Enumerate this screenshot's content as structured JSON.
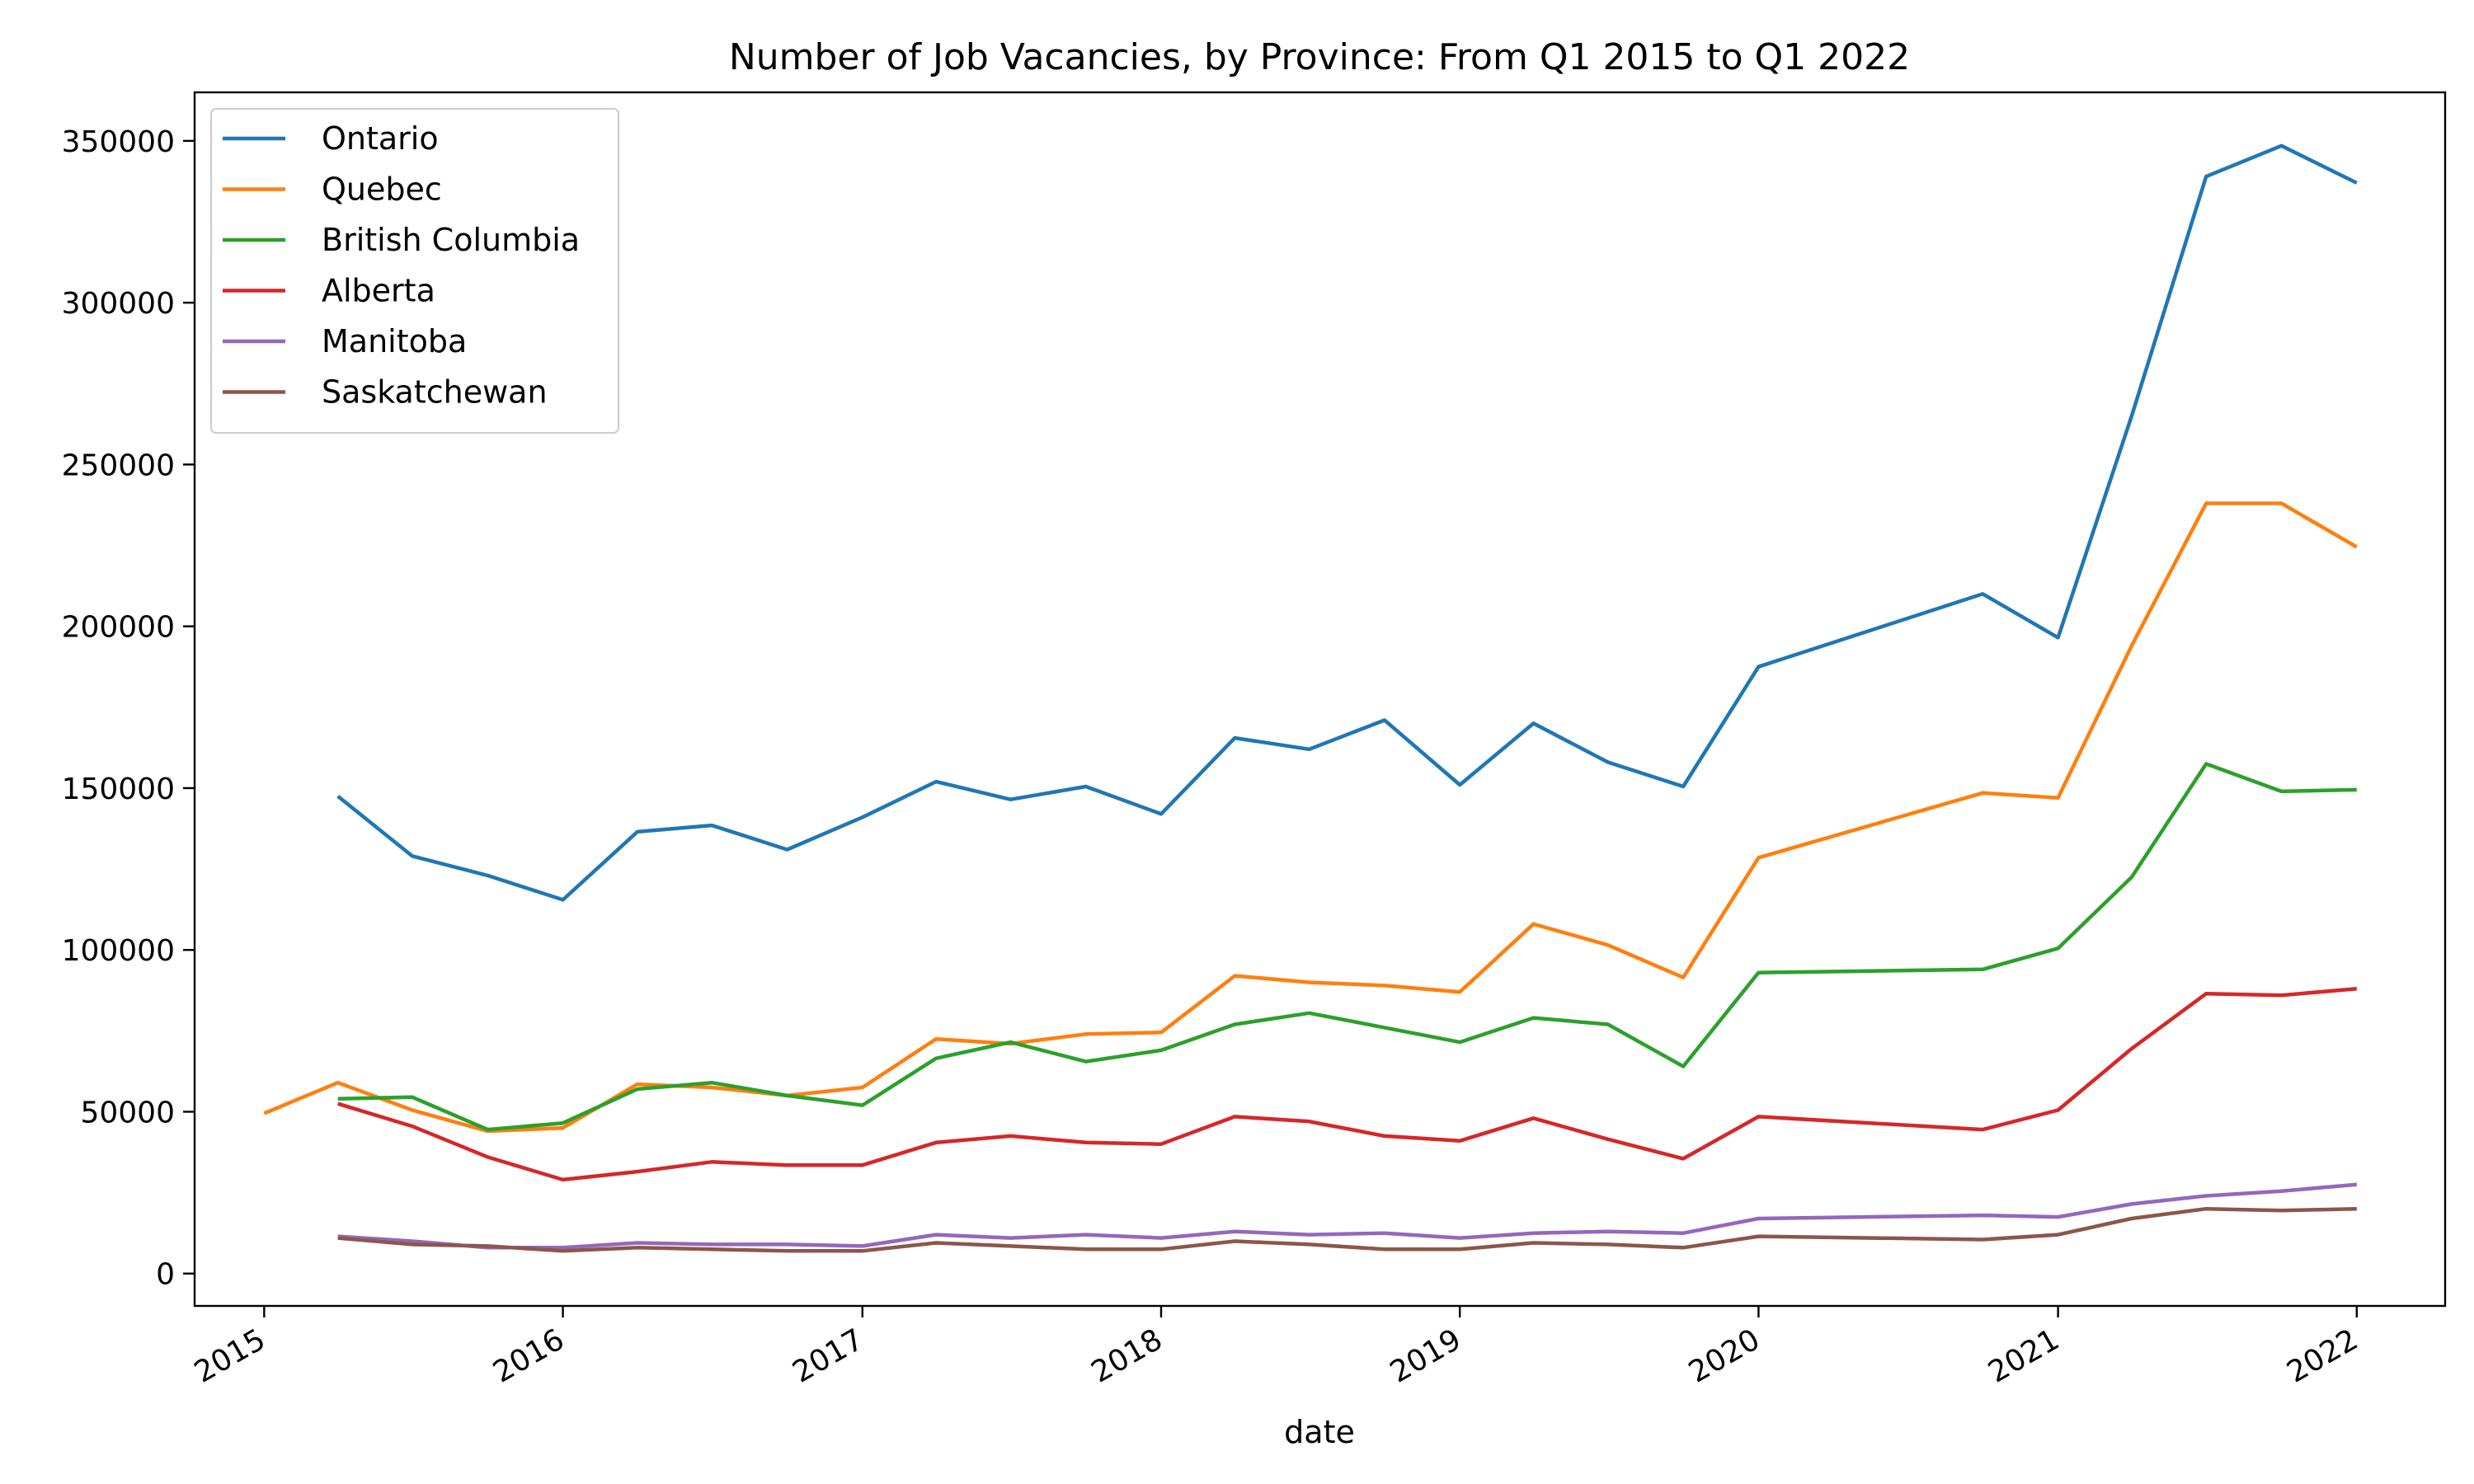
{
  "chart_data": {
    "type": "line",
    "title": "Number of Job Vacancies, by Province: From Q1 2015 to Q1 2022",
    "xlabel": "date",
    "ylabel": "",
    "x_ticks": [
      "2015",
      "2016",
      "2017",
      "2018",
      "2019",
      "2020",
      "2021",
      "2022"
    ],
    "y_ticks": [
      "0",
      "50000",
      "100000",
      "150000",
      "200000",
      "250000",
      "300000",
      "350000"
    ],
    "ylim": [
      -10000,
      365000
    ],
    "xlim": [
      "2014-10-08",
      "2022-04-19"
    ],
    "grid": false,
    "legend_position": "top-left",
    "series": [
      {
        "name": "Ontario",
        "color": "#1f77b4",
        "points": [
          [
            "2015-04-01",
            147500
          ],
          [
            "2015-07-01",
            129000
          ],
          [
            "2015-10-01",
            123000
          ],
          [
            "2016-01-01",
            115500
          ],
          [
            "2016-04-01",
            136500
          ],
          [
            "2016-07-01",
            138500
          ],
          [
            "2016-10-01",
            131000
          ],
          [
            "2017-01-01",
            141000
          ],
          [
            "2017-04-01",
            152000
          ],
          [
            "2017-07-01",
            146500
          ],
          [
            "2017-10-01",
            150500
          ],
          [
            "2018-01-01",
            142000
          ],
          [
            "2018-04-01",
            165500
          ],
          [
            "2018-07-01",
            162000
          ],
          [
            "2018-10-01",
            171000
          ],
          [
            "2019-01-01",
            151000
          ],
          [
            "2019-04-01",
            170000
          ],
          [
            "2019-07-01",
            158000
          ],
          [
            "2019-10-01",
            150500
          ],
          [
            "2020-01-01",
            187500
          ],
          [
            "2020-10-01",
            210000
          ],
          [
            "2021-01-01",
            196500
          ],
          [
            "2021-04-01",
            265000
          ],
          [
            "2021-07-01",
            339000
          ],
          [
            "2021-10-01",
            348500
          ],
          [
            "2022-01-01",
            337000
          ]
        ]
      },
      {
        "name": "Quebec",
        "color": "#ff7f0e",
        "points": [
          [
            "2015-01-01",
            49500
          ],
          [
            "2015-04-01",
            59000
          ],
          [
            "2015-07-01",
            50500
          ],
          [
            "2015-10-01",
            44000
          ],
          [
            "2016-01-01",
            45000
          ],
          [
            "2016-04-01",
            58500
          ],
          [
            "2016-07-01",
            57500
          ],
          [
            "2016-10-01",
            55000
          ],
          [
            "2017-01-01",
            57500
          ],
          [
            "2017-04-01",
            72500
          ],
          [
            "2017-07-01",
            71000
          ],
          [
            "2017-10-01",
            74000
          ],
          [
            "2018-01-01",
            74500
          ],
          [
            "2018-04-01",
            92000
          ],
          [
            "2018-07-01",
            90000
          ],
          [
            "2018-10-01",
            89000
          ],
          [
            "2019-01-01",
            87000
          ],
          [
            "2019-04-01",
            108000
          ],
          [
            "2019-07-01",
            101500
          ],
          [
            "2019-10-01",
            91500
          ],
          [
            "2020-01-01",
            128500
          ],
          [
            "2020-10-01",
            148500
          ],
          [
            "2021-01-01",
            147000
          ],
          [
            "2021-04-01",
            194000
          ],
          [
            "2021-07-01",
            238000
          ],
          [
            "2021-10-01",
            238000
          ],
          [
            "2022-01-01",
            224500
          ]
        ]
      },
      {
        "name": "British Columbia",
        "color": "#2ca02c",
        "points": [
          [
            "2015-04-01",
            54000
          ],
          [
            "2015-07-01",
            54500
          ],
          [
            "2015-10-01",
            44500
          ],
          [
            "2016-01-01",
            46500
          ],
          [
            "2016-04-01",
            57000
          ],
          [
            "2016-07-01",
            59000
          ],
          [
            "2016-10-01",
            55000
          ],
          [
            "2017-01-01",
            52000
          ],
          [
            "2017-04-01",
            66500
          ],
          [
            "2017-07-01",
            71500
          ],
          [
            "2017-10-01",
            65500
          ],
          [
            "2018-01-01",
            69000
          ],
          [
            "2018-04-01",
            77000
          ],
          [
            "2018-07-01",
            80500
          ],
          [
            "2018-10-01",
            76000
          ],
          [
            "2019-01-01",
            71500
          ],
          [
            "2019-04-01",
            79000
          ],
          [
            "2019-07-01",
            77000
          ],
          [
            "2019-10-01",
            64000
          ],
          [
            "2020-01-01",
            93000
          ],
          [
            "2020-10-01",
            94000
          ],
          [
            "2021-01-01",
            100500
          ],
          [
            "2021-04-01",
            122500
          ],
          [
            "2021-07-01",
            157500
          ],
          [
            "2021-10-01",
            149000
          ],
          [
            "2022-01-01",
            149500
          ]
        ]
      },
      {
        "name": "Alberta",
        "color": "#d62728",
        "points": [
          [
            "2015-04-01",
            52500
          ],
          [
            "2015-07-01",
            45500
          ],
          [
            "2015-10-01",
            36000
          ],
          [
            "2016-01-01",
            29000
          ],
          [
            "2016-04-01",
            31500
          ],
          [
            "2016-07-01",
            34500
          ],
          [
            "2016-10-01",
            33500
          ],
          [
            "2017-01-01",
            33500
          ],
          [
            "2017-04-01",
            40500
          ],
          [
            "2017-07-01",
            42500
          ],
          [
            "2017-10-01",
            40500
          ],
          [
            "2018-01-01",
            40000
          ],
          [
            "2018-04-01",
            48500
          ],
          [
            "2018-07-01",
            47000
          ],
          [
            "2018-10-01",
            42500
          ],
          [
            "2019-01-01",
            41000
          ],
          [
            "2019-04-01",
            48000
          ],
          [
            "2019-07-01",
            41500
          ],
          [
            "2019-10-01",
            35500
          ],
          [
            "2020-01-01",
            48500
          ],
          [
            "2020-10-01",
            44500
          ],
          [
            "2021-01-01",
            50500
          ],
          [
            "2021-04-01",
            69500
          ],
          [
            "2021-07-01",
            86500
          ],
          [
            "2021-10-01",
            86000
          ],
          [
            "2022-01-01",
            88000
          ]
        ]
      },
      {
        "name": "Manitoba",
        "color": "#9467bd",
        "points": [
          [
            "2015-04-01",
            11500
          ],
          [
            "2015-07-01",
            10000
          ],
          [
            "2015-10-01",
            8000
          ],
          [
            "2016-01-01",
            8000
          ],
          [
            "2016-04-01",
            9500
          ],
          [
            "2016-07-01",
            9000
          ],
          [
            "2016-10-01",
            9000
          ],
          [
            "2017-01-01",
            8500
          ],
          [
            "2017-04-01",
            12000
          ],
          [
            "2017-07-01",
            11000
          ],
          [
            "2017-10-01",
            12000
          ],
          [
            "2018-01-01",
            11000
          ],
          [
            "2018-04-01",
            13000
          ],
          [
            "2018-07-01",
            12000
          ],
          [
            "2018-10-01",
            12500
          ],
          [
            "2019-01-01",
            11000
          ],
          [
            "2019-04-01",
            12500
          ],
          [
            "2019-07-01",
            13000
          ],
          [
            "2019-10-01",
            12500
          ],
          [
            "2020-01-01",
            17000
          ],
          [
            "2020-10-01",
            18000
          ],
          [
            "2021-01-01",
            17500
          ],
          [
            "2021-04-01",
            21500
          ],
          [
            "2021-07-01",
            24000
          ],
          [
            "2021-10-01",
            25500
          ],
          [
            "2022-01-01",
            27500
          ]
        ]
      },
      {
        "name": "Saskatchewan",
        "color": "#8c564b",
        "points": [
          [
            "2015-04-01",
            11000
          ],
          [
            "2015-07-01",
            9000
          ],
          [
            "2015-10-01",
            8500
          ],
          [
            "2016-01-01",
            7000
          ],
          [
            "2016-04-01",
            8000
          ],
          [
            "2016-07-01",
            7500
          ],
          [
            "2016-10-01",
            7000
          ],
          [
            "2017-01-01",
            7000
          ],
          [
            "2017-04-01",
            9500
          ],
          [
            "2017-07-01",
            8500
          ],
          [
            "2017-10-01",
            7500
          ],
          [
            "2018-01-01",
            7500
          ],
          [
            "2018-04-01",
            10000
          ],
          [
            "2018-07-01",
            9000
          ],
          [
            "2018-10-01",
            7500
          ],
          [
            "2019-01-01",
            7500
          ],
          [
            "2019-04-01",
            9500
          ],
          [
            "2019-07-01",
            9000
          ],
          [
            "2019-10-01",
            8000
          ],
          [
            "2020-01-01",
            11500
          ],
          [
            "2020-10-01",
            10500
          ],
          [
            "2021-01-01",
            12000
          ],
          [
            "2021-04-01",
            17000
          ],
          [
            "2021-07-01",
            20000
          ],
          [
            "2021-10-01",
            19500
          ],
          [
            "2022-01-01",
            20000
          ]
        ]
      }
    ]
  }
}
